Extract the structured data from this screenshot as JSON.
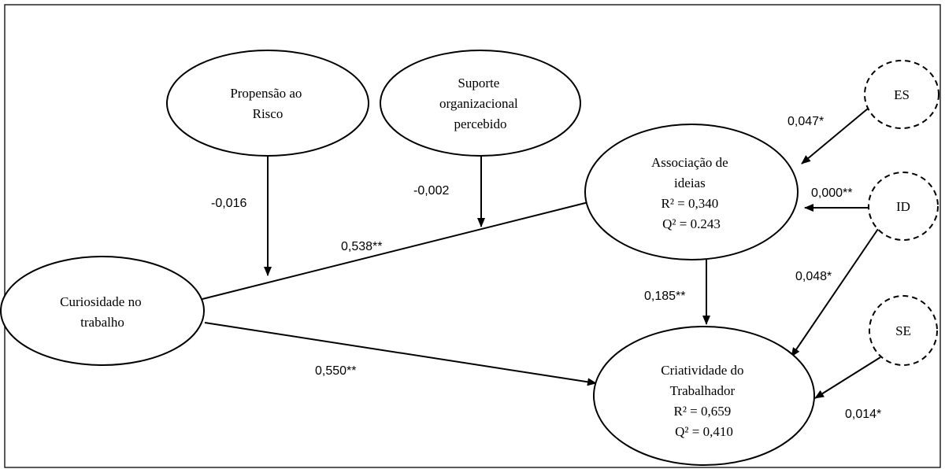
{
  "nodes": {
    "propensao": [
      "Propensão ao",
      "Risco"
    ],
    "suporte": [
      "Suporte",
      "organizacional",
      "percebido"
    ],
    "curiosidade": [
      "Curiosidade no",
      "trabalho"
    ],
    "associacao": [
      "Associação de",
      "ideias",
      "R² = 0,340",
      "Q² = 0.243"
    ],
    "criatividade": [
      "Criatividade do",
      "Trabalhador",
      "R² = 0,659",
      "Q² = 0,410"
    ],
    "es": [
      "ES"
    ],
    "id": [
      "ID"
    ],
    "se": [
      "SE"
    ]
  },
  "coefficients": {
    "propensao_mod": "-0,016",
    "suporte_mod": "-0,002",
    "curiosidade_associacao": "0,538**",
    "curiosidade_criatividade": "0,550**",
    "associacao_criatividade": "0,185**",
    "es_associacao": "0,047*",
    "id_associacao": "0,000**",
    "id_criatividade": "0,048*",
    "se_criatividade": "0,014*"
  },
  "colors": {
    "stroke": "#000000",
    "frame": "#222222",
    "background": "#ffffff"
  }
}
